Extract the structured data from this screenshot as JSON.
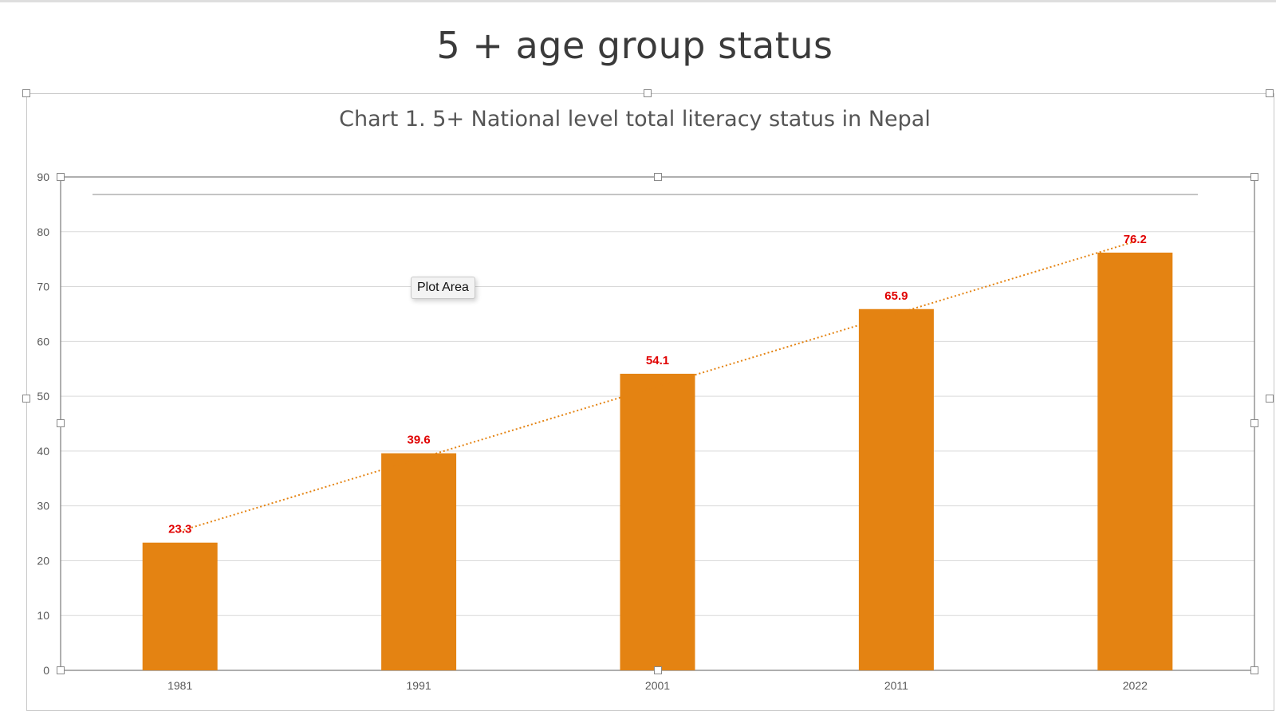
{
  "slide": {
    "title": "5 + age group status",
    "tooltip": "Plot Area"
  },
  "colors": {
    "bar": "#E48312",
    "data_label": "#E00000",
    "trendline": "#E48312",
    "gridline": "#d9d9d9",
    "axis_text": "#595959"
  },
  "chart_data": {
    "type": "bar",
    "title": "Chart 1.  5+ National level total literacy status in Nepal",
    "categories": [
      "1981",
      "1991",
      "2001",
      "2011",
      "2022"
    ],
    "values": [
      23.3,
      39.6,
      54.1,
      65.9,
      76.2
    ],
    "data_labels": [
      "23.3",
      "39.6",
      "54.1",
      "65.9",
      "76.2"
    ],
    "ylim": [
      0,
      90
    ],
    "yticks": [
      0,
      10,
      20,
      30,
      40,
      50,
      60,
      70,
      80,
      90
    ],
    "grid": true,
    "trendline": "linear, dotted",
    "xlabel": "",
    "ylabel": ""
  }
}
